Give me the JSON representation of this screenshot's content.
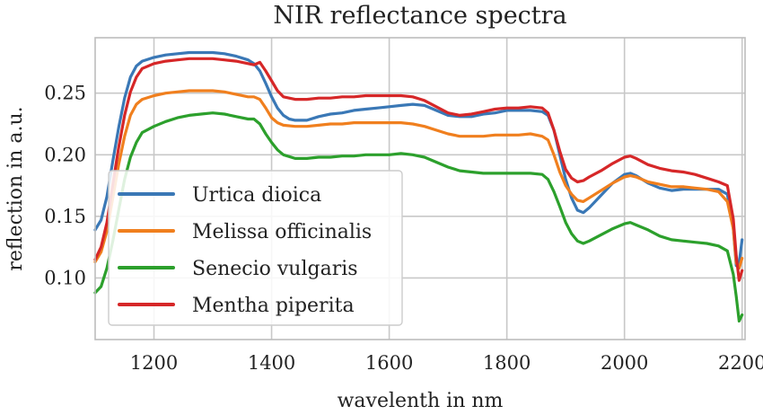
{
  "chart_data": {
    "type": "line",
    "title": "NIR reflectance spectra",
    "xlabel": "wavelenth in nm",
    "ylabel": "reflection in a.u.",
    "xlim": [
      1100,
      2205
    ],
    "ylim": [
      0.05,
      0.295
    ],
    "xticks": [
      1200,
      1400,
      1600,
      1800,
      2000,
      2200
    ],
    "xtick_labels": [
      "1200",
      "1400",
      "1600",
      "1800",
      "2000",
      "2200"
    ],
    "yticks": [
      0.1,
      0.15,
      0.2,
      0.25
    ],
    "ytick_labels": [
      "0.10",
      "0.15",
      "0.20",
      "0.25"
    ],
    "grid": true,
    "legend_position": "bottom-left",
    "series": [
      {
        "name": "Urtica dioica",
        "color": "#3a78b6",
        "points": [
          [
            1100,
            0.139
          ],
          [
            1110,
            0.147
          ],
          [
            1120,
            0.166
          ],
          [
            1130,
            0.195
          ],
          [
            1140,
            0.222
          ],
          [
            1150,
            0.246
          ],
          [
            1160,
            0.263
          ],
          [
            1170,
            0.272
          ],
          [
            1180,
            0.276
          ],
          [
            1200,
            0.279
          ],
          [
            1220,
            0.281
          ],
          [
            1240,
            0.282
          ],
          [
            1260,
            0.283
          ],
          [
            1280,
            0.283
          ],
          [
            1300,
            0.283
          ],
          [
            1320,
            0.282
          ],
          [
            1340,
            0.28
          ],
          [
            1360,
            0.277
          ],
          [
            1370,
            0.274
          ],
          [
            1380,
            0.268
          ],
          [
            1390,
            0.258
          ],
          [
            1400,
            0.247
          ],
          [
            1410,
            0.238
          ],
          [
            1420,
            0.232
          ],
          [
            1430,
            0.229
          ],
          [
            1440,
            0.228
          ],
          [
            1460,
            0.228
          ],
          [
            1480,
            0.231
          ],
          [
            1500,
            0.233
          ],
          [
            1520,
            0.234
          ],
          [
            1540,
            0.236
          ],
          [
            1560,
            0.237
          ],
          [
            1580,
            0.238
          ],
          [
            1600,
            0.239
          ],
          [
            1620,
            0.24
          ],
          [
            1640,
            0.241
          ],
          [
            1660,
            0.24
          ],
          [
            1680,
            0.236
          ],
          [
            1700,
            0.232
          ],
          [
            1720,
            0.231
          ],
          [
            1740,
            0.231
          ],
          [
            1760,
            0.233
          ],
          [
            1780,
            0.234
          ],
          [
            1800,
            0.236
          ],
          [
            1820,
            0.236
          ],
          [
            1840,
            0.236
          ],
          [
            1860,
            0.235
          ],
          [
            1870,
            0.232
          ],
          [
            1880,
            0.22
          ],
          [
            1890,
            0.2
          ],
          [
            1900,
            0.18
          ],
          [
            1910,
            0.165
          ],
          [
            1920,
            0.155
          ],
          [
            1930,
            0.153
          ],
          [
            1940,
            0.157
          ],
          [
            1960,
            0.167
          ],
          [
            1980,
            0.177
          ],
          [
            2000,
            0.184
          ],
          [
            2010,
            0.185
          ],
          [
            2020,
            0.183
          ],
          [
            2040,
            0.177
          ],
          [
            2060,
            0.173
          ],
          [
            2080,
            0.171
          ],
          [
            2100,
            0.172
          ],
          [
            2120,
            0.172
          ],
          [
            2140,
            0.172
          ],
          [
            2160,
            0.172
          ],
          [
            2175,
            0.168
          ],
          [
            2185,
            0.14
          ],
          [
            2190,
            0.11
          ],
          [
            2195,
            0.112
          ],
          [
            2200,
            0.131
          ]
        ]
      },
      {
        "name": "Melissa officinalis",
        "color": "#f07f1e",
        "points": [
          [
            1100,
            0.113
          ],
          [
            1110,
            0.121
          ],
          [
            1120,
            0.138
          ],
          [
            1130,
            0.165
          ],
          [
            1140,
            0.192
          ],
          [
            1150,
            0.215
          ],
          [
            1160,
            0.232
          ],
          [
            1170,
            0.241
          ],
          [
            1180,
            0.245
          ],
          [
            1200,
            0.248
          ],
          [
            1220,
            0.25
          ],
          [
            1240,
            0.251
          ],
          [
            1260,
            0.252
          ],
          [
            1280,
            0.252
          ],
          [
            1300,
            0.252
          ],
          [
            1320,
            0.251
          ],
          [
            1340,
            0.249
          ],
          [
            1360,
            0.247
          ],
          [
            1370,
            0.247
          ],
          [
            1380,
            0.245
          ],
          [
            1390,
            0.238
          ],
          [
            1400,
            0.23
          ],
          [
            1410,
            0.226
          ],
          [
            1420,
            0.224
          ],
          [
            1440,
            0.223
          ],
          [
            1460,
            0.223
          ],
          [
            1480,
            0.224
          ],
          [
            1500,
            0.225
          ],
          [
            1520,
            0.225
          ],
          [
            1540,
            0.226
          ],
          [
            1560,
            0.226
          ],
          [
            1580,
            0.226
          ],
          [
            1600,
            0.226
          ],
          [
            1620,
            0.226
          ],
          [
            1640,
            0.225
          ],
          [
            1660,
            0.223
          ],
          [
            1680,
            0.22
          ],
          [
            1700,
            0.217
          ],
          [
            1720,
            0.215
          ],
          [
            1740,
            0.215
          ],
          [
            1760,
            0.215
          ],
          [
            1780,
            0.216
          ],
          [
            1800,
            0.216
          ],
          [
            1820,
            0.216
          ],
          [
            1840,
            0.217
          ],
          [
            1860,
            0.215
          ],
          [
            1870,
            0.212
          ],
          [
            1880,
            0.2
          ],
          [
            1890,
            0.186
          ],
          [
            1900,
            0.175
          ],
          [
            1910,
            0.168
          ],
          [
            1920,
            0.163
          ],
          [
            1930,
            0.162
          ],
          [
            1940,
            0.165
          ],
          [
            1960,
            0.171
          ],
          [
            1980,
            0.177
          ],
          [
            2000,
            0.182
          ],
          [
            2010,
            0.183
          ],
          [
            2020,
            0.182
          ],
          [
            2040,
            0.178
          ],
          [
            2060,
            0.176
          ],
          [
            2080,
            0.174
          ],
          [
            2100,
            0.174
          ],
          [
            2120,
            0.173
          ],
          [
            2140,
            0.172
          ],
          [
            2160,
            0.17
          ],
          [
            2175,
            0.162
          ],
          [
            2185,
            0.14
          ],
          [
            2190,
            0.112
          ],
          [
            2195,
            0.108
          ],
          [
            2200,
            0.116
          ]
        ]
      },
      {
        "name": "Senecio vulgaris",
        "color": "#2ca02c",
        "points": [
          [
            1100,
            0.088
          ],
          [
            1110,
            0.093
          ],
          [
            1120,
            0.108
          ],
          [
            1130,
            0.13
          ],
          [
            1140,
            0.155
          ],
          [
            1150,
            0.18
          ],
          [
            1160,
            0.198
          ],
          [
            1170,
            0.21
          ],
          [
            1180,
            0.218
          ],
          [
            1200,
            0.223
          ],
          [
            1220,
            0.227
          ],
          [
            1240,
            0.23
          ],
          [
            1260,
            0.232
          ],
          [
            1280,
            0.233
          ],
          [
            1300,
            0.234
          ],
          [
            1320,
            0.233
          ],
          [
            1340,
            0.231
          ],
          [
            1360,
            0.229
          ],
          [
            1370,
            0.229
          ],
          [
            1380,
            0.225
          ],
          [
            1390,
            0.217
          ],
          [
            1400,
            0.21
          ],
          [
            1410,
            0.204
          ],
          [
            1420,
            0.2
          ],
          [
            1440,
            0.197
          ],
          [
            1460,
            0.197
          ],
          [
            1480,
            0.198
          ],
          [
            1500,
            0.198
          ],
          [
            1520,
            0.199
          ],
          [
            1540,
            0.199
          ],
          [
            1560,
            0.2
          ],
          [
            1580,
            0.2
          ],
          [
            1600,
            0.2
          ],
          [
            1620,
            0.201
          ],
          [
            1640,
            0.2
          ],
          [
            1660,
            0.198
          ],
          [
            1680,
            0.194
          ],
          [
            1700,
            0.19
          ],
          [
            1720,
            0.187
          ],
          [
            1740,
            0.186
          ],
          [
            1760,
            0.185
          ],
          [
            1780,
            0.185
          ],
          [
            1800,
            0.185
          ],
          [
            1820,
            0.185
          ],
          [
            1840,
            0.185
          ],
          [
            1860,
            0.184
          ],
          [
            1870,
            0.18
          ],
          [
            1880,
            0.17
          ],
          [
            1890,
            0.158
          ],
          [
            1900,
            0.145
          ],
          [
            1910,
            0.136
          ],
          [
            1920,
            0.13
          ],
          [
            1930,
            0.128
          ],
          [
            1940,
            0.13
          ],
          [
            1960,
            0.135
          ],
          [
            1980,
            0.14
          ],
          [
            2000,
            0.144
          ],
          [
            2010,
            0.145
          ],
          [
            2020,
            0.143
          ],
          [
            2040,
            0.139
          ],
          [
            2060,
            0.134
          ],
          [
            2080,
            0.131
          ],
          [
            2100,
            0.13
          ],
          [
            2120,
            0.129
          ],
          [
            2140,
            0.128
          ],
          [
            2160,
            0.126
          ],
          [
            2175,
            0.122
          ],
          [
            2185,
            0.103
          ],
          [
            2190,
            0.085
          ],
          [
            2195,
            0.065
          ],
          [
            2200,
            0.07
          ]
        ]
      },
      {
        "name": "Mentha piperita",
        "color": "#d62728",
        "points": [
          [
            1100,
            0.115
          ],
          [
            1110,
            0.125
          ],
          [
            1120,
            0.145
          ],
          [
            1130,
            0.176
          ],
          [
            1140,
            0.206
          ],
          [
            1150,
            0.232
          ],
          [
            1160,
            0.251
          ],
          [
            1170,
            0.263
          ],
          [
            1180,
            0.27
          ],
          [
            1200,
            0.274
          ],
          [
            1220,
            0.276
          ],
          [
            1240,
            0.277
          ],
          [
            1260,
            0.278
          ],
          [
            1280,
            0.278
          ],
          [
            1300,
            0.278
          ],
          [
            1320,
            0.277
          ],
          [
            1340,
            0.276
          ],
          [
            1360,
            0.274
          ],
          [
            1370,
            0.273
          ],
          [
            1380,
            0.275
          ],
          [
            1390,
            0.268
          ],
          [
            1400,
            0.26
          ],
          [
            1410,
            0.252
          ],
          [
            1420,
            0.247
          ],
          [
            1440,
            0.245
          ],
          [
            1460,
            0.245
          ],
          [
            1480,
            0.246
          ],
          [
            1500,
            0.246
          ],
          [
            1520,
            0.247
          ],
          [
            1540,
            0.247
          ],
          [
            1560,
            0.248
          ],
          [
            1580,
            0.248
          ],
          [
            1600,
            0.248
          ],
          [
            1620,
            0.248
          ],
          [
            1640,
            0.247
          ],
          [
            1660,
            0.244
          ],
          [
            1680,
            0.239
          ],
          [
            1700,
            0.234
          ],
          [
            1720,
            0.232
          ],
          [
            1740,
            0.233
          ],
          [
            1760,
            0.235
          ],
          [
            1780,
            0.237
          ],
          [
            1800,
            0.238
          ],
          [
            1820,
            0.238
          ],
          [
            1840,
            0.239
          ],
          [
            1860,
            0.238
          ],
          [
            1870,
            0.234
          ],
          [
            1880,
            0.22
          ],
          [
            1890,
            0.203
          ],
          [
            1900,
            0.188
          ],
          [
            1910,
            0.181
          ],
          [
            1920,
            0.178
          ],
          [
            1930,
            0.179
          ],
          [
            1940,
            0.182
          ],
          [
            1960,
            0.187
          ],
          [
            1980,
            0.193
          ],
          [
            2000,
            0.198
          ],
          [
            2010,
            0.199
          ],
          [
            2020,
            0.197
          ],
          [
            2040,
            0.192
          ],
          [
            2060,
            0.189
          ],
          [
            2080,
            0.187
          ],
          [
            2100,
            0.186
          ],
          [
            2120,
            0.184
          ],
          [
            2140,
            0.181
          ],
          [
            2160,
            0.178
          ],
          [
            2175,
            0.175
          ],
          [
            2185,
            0.148
          ],
          [
            2190,
            0.118
          ],
          [
            2195,
            0.098
          ],
          [
            2200,
            0.106
          ]
        ]
      }
    ]
  }
}
